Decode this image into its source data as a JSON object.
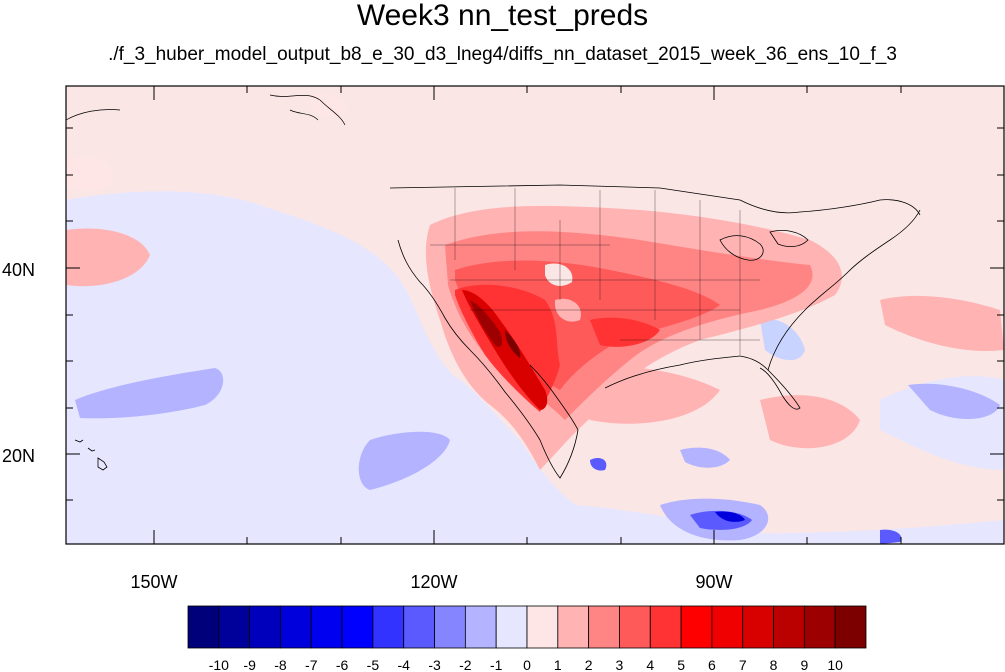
{
  "title": "Week3 nn_test_preds",
  "subtitle": "./f_3_huber_model_output_b8_e_30_d3_lneg4/diffs_nn_dataset_2015_week_36_ens_10_f_3",
  "axes": {
    "lat_labels": [
      "40N",
      "20N"
    ],
    "lon_labels": [
      "150W",
      "120W",
      "90W"
    ]
  },
  "colorbar": {
    "labels": [
      "-10",
      "-9",
      "-8",
      "-7",
      "-6",
      "-5",
      "-4",
      "-3",
      "-2",
      "-1",
      "0",
      "1",
      "2",
      "3",
      "4",
      "5",
      "6",
      "7",
      "8",
      "9",
      "10"
    ],
    "colors": [
      "#00007a",
      "#00009b",
      "#0000bc",
      "#0000dd",
      "#0000f0",
      "#0000ff",
      "#3333ff",
      "#5a5aff",
      "#8585ff",
      "#b3b3ff",
      "#e6e6ff",
      "#ffe6e6",
      "#ffb3b3",
      "#ff8585",
      "#ff5a5a",
      "#ff3333",
      "#ff0000",
      "#f00000",
      "#d90000",
      "#bb0000",
      "#9c0000",
      "#7d0000"
    ]
  },
  "map": {
    "background": "#fbe6e6",
    "region": "Contiguous United States and eastern Pacific"
  }
}
